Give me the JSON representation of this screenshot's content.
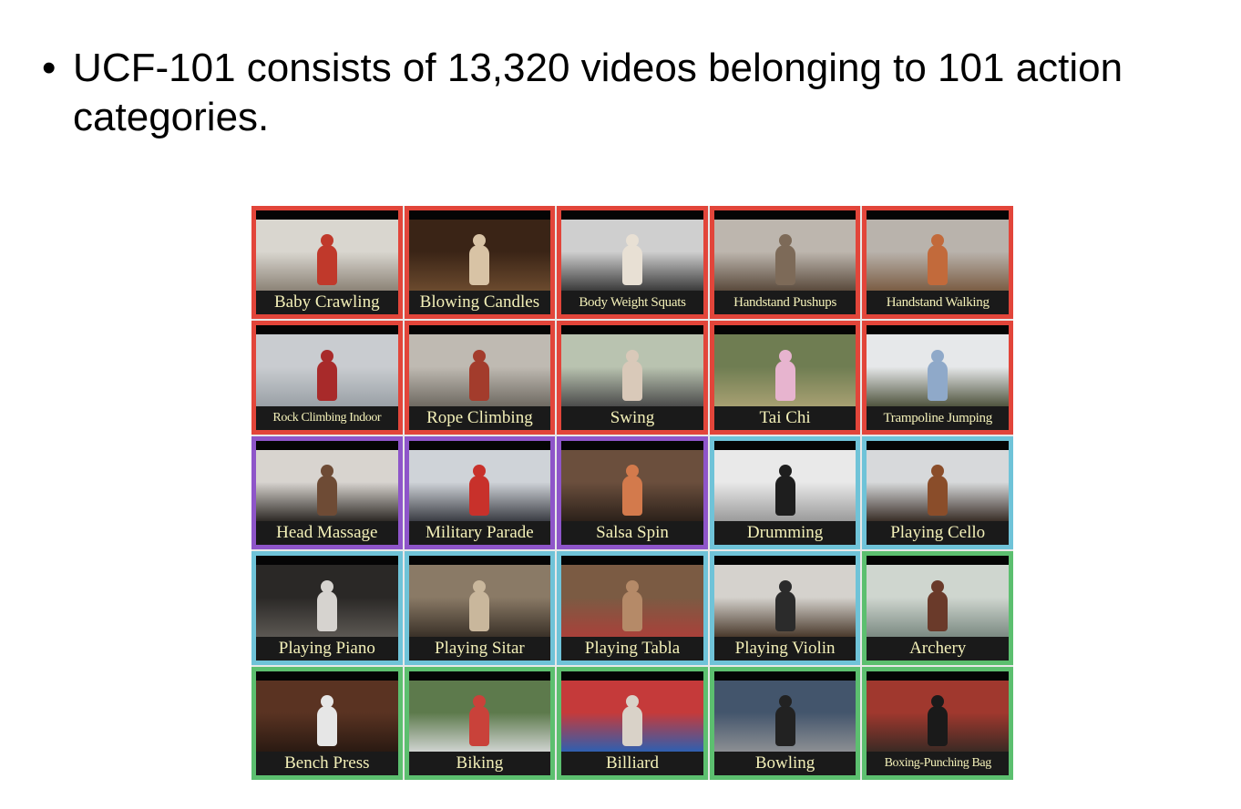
{
  "slide": {
    "bullet_glyph": "•",
    "bullet_text": "UCF-101 consists of 13,320 videos belonging to 101 action categories."
  },
  "colors": {
    "red": "#e2453a",
    "purple": "#8e55c9",
    "blue": "#6fc3d8",
    "green": "#5cbf6f"
  },
  "tiles": [
    {
      "label": "Baby Crawling",
      "group": "red",
      "bg1": "#d9d6cf",
      "bg2": "#8c8377",
      "fig": "#c0392b"
    },
    {
      "label": "Blowing Candles",
      "group": "red",
      "bg1": "#3a2416",
      "bg2": "#6b4a2e",
      "fig": "#d8c3a5"
    },
    {
      "label": "Body Weight Squats",
      "group": "red",
      "bg1": "#cfcfcf",
      "bg2": "#3b3b3b",
      "fig": "#e8e0d4"
    },
    {
      "label": "Handstand Pushups",
      "group": "red",
      "bg1": "#bdb6ae",
      "bg2": "#5a4a3c",
      "fig": "#7d6a58"
    },
    {
      "label": "Handstand Walking",
      "group": "red",
      "bg1": "#b9b3ac",
      "bg2": "#7b5d44",
      "fig": "#c26a3b"
    },
    {
      "label": "Rock Climbing Indoor",
      "group": "red",
      "bg1": "#c9ccd0",
      "bg2": "#9aa0a6",
      "fig": "#a82a2a"
    },
    {
      "label": "Rope Climbing",
      "group": "red",
      "bg1": "#bfbab2",
      "bg2": "#6f6a62",
      "fig": "#a33c2c"
    },
    {
      "label": "Swing",
      "group": "red",
      "bg1": "#b9c3b0",
      "bg2": "#4c4c4c",
      "fig": "#d9c9b9"
    },
    {
      "label": "Tai Chi",
      "group": "red",
      "bg1": "#6f7d52",
      "bg2": "#a7a072",
      "fig": "#e7b4cf"
    },
    {
      "label": "Trampoline Jumping",
      "group": "red",
      "bg1": "#e6e8ea",
      "bg2": "#50553f",
      "fig": "#8fa9c9"
    },
    {
      "label": "Head Massage",
      "group": "purple",
      "bg1": "#d8d4cf",
      "bg2": "#2e2a26",
      "fig": "#6e4b35"
    },
    {
      "label": "Military Parade",
      "group": "purple",
      "bg1": "#cfd3d8",
      "bg2": "#3b3d44",
      "fig": "#c8312b"
    },
    {
      "label": "Salsa Spin",
      "group": "purple",
      "bg1": "#6b4f3d",
      "bg2": "#2c211a",
      "fig": "#d37a4c"
    },
    {
      "label": "Drumming",
      "group": "blue",
      "bg1": "#e9e9e9",
      "bg2": "#9b9b9b",
      "fig": "#1e1e1e"
    },
    {
      "label": "Playing Cello",
      "group": "blue",
      "bg1": "#d7d9db",
      "bg2": "#3a2f28",
      "fig": "#8a4d2a"
    },
    {
      "label": "Playing Piano",
      "group": "blue",
      "bg1": "#2a2826",
      "bg2": "#5c5853",
      "fig": "#d6d3cf"
    },
    {
      "label": "Playing Sitar",
      "group": "blue",
      "bg1": "#8a7a66",
      "bg2": "#3a3128",
      "fig": "#c9b79c"
    },
    {
      "label": "Playing Tabla",
      "group": "blue",
      "bg1": "#7b5b43",
      "bg2": "#a9413a",
      "fig": "#b58a68"
    },
    {
      "label": "Playing Violin",
      "group": "blue",
      "bg1": "#d5d2cd",
      "bg2": "#4a3a2c",
      "fig": "#2b2b2b"
    },
    {
      "label": "Archery",
      "group": "green",
      "bg1": "#cfd6cf",
      "bg2": "#7b8a82",
      "fig": "#6a3a2a"
    },
    {
      "label": "Bench Press",
      "group": "green",
      "bg1": "#5a3322",
      "bg2": "#2a1a12",
      "fig": "#e6e6e6"
    },
    {
      "label": "Biking",
      "group": "green",
      "bg1": "#5d7a4c",
      "bg2": "#cfd3d0",
      "fig": "#c9423a"
    },
    {
      "label": "Billiard",
      "group": "green",
      "bg1": "#c53a3a",
      "bg2": "#2f5fb0",
      "fig": "#d9d2c8"
    },
    {
      "label": "Bowling",
      "group": "green",
      "bg1": "#43556c",
      "bg2": "#8c8f93",
      "fig": "#222"
    },
    {
      "label": "Boxing-Punching Bag",
      "group": "green",
      "bg1": "#a0382e",
      "bg2": "#3b2a24",
      "fig": "#1a1a1a"
    }
  ]
}
